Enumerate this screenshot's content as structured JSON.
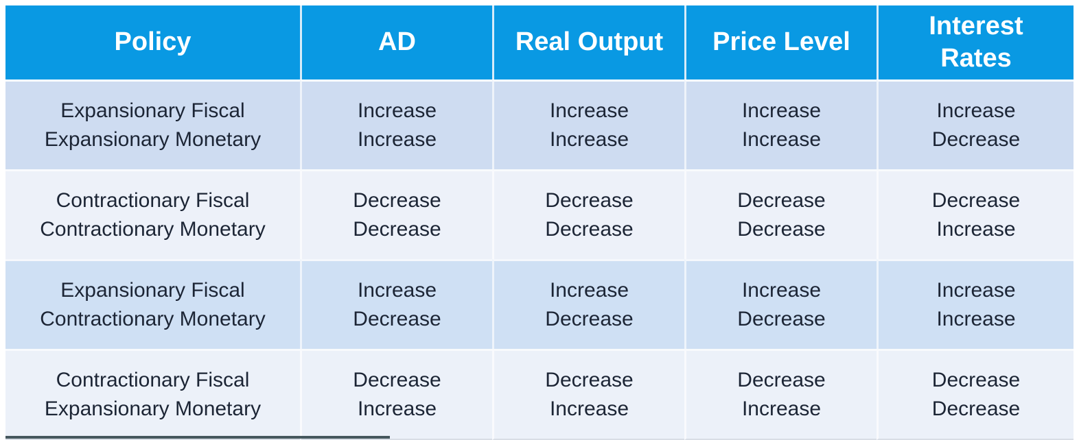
{
  "colors": {
    "header_bg": "#0999e3",
    "header_text": "#ffffff",
    "body_text": "#1c2535",
    "row_backgrounds": [
      "#cedcf1",
      "#edf1f9",
      "#cfe0f4",
      "#ecf1f9"
    ]
  },
  "table": {
    "columns": [
      "Policy",
      "AD",
      "Real Output",
      "Price Level",
      "Interest Rates"
    ],
    "rows": [
      {
        "cells": [
          [
            "Expansionary Fiscal",
            "Expansionary Monetary"
          ],
          [
            "Increase",
            "Increase"
          ],
          [
            "Increase",
            "Increase"
          ],
          [
            "Increase",
            "Increase"
          ],
          [
            "Increase",
            "Decrease"
          ]
        ]
      },
      {
        "cells": [
          [
            "Contractionary Fiscal",
            "Contractionary Monetary"
          ],
          [
            "Decrease",
            "Decrease"
          ],
          [
            "Decrease",
            "Decrease"
          ],
          [
            "Decrease",
            "Decrease"
          ],
          [
            "Decrease",
            "Increase"
          ]
        ]
      },
      {
        "cells": [
          [
            "Expansionary Fiscal",
            "Contractionary Monetary"
          ],
          [
            "Increase",
            "Decrease"
          ],
          [
            "Increase",
            "Decrease"
          ],
          [
            "Increase",
            "Decrease"
          ],
          [
            "Increase",
            "Increase"
          ]
        ]
      },
      {
        "cells": [
          [
            "Contractionary Fiscal",
            "Expansionary Monetary"
          ],
          [
            "Decrease",
            "Increase"
          ],
          [
            "Decrease",
            "Increase"
          ],
          [
            "Decrease",
            "Increase"
          ],
          [
            "Decrease",
            "Decrease"
          ]
        ]
      }
    ]
  },
  "chart_data": {
    "type": "table",
    "title": "",
    "columns": [
      "Policy",
      "AD",
      "Real Output",
      "Price Level",
      "Interest Rates"
    ],
    "rows": [
      [
        "Expansionary Fiscal / Expansionary Monetary",
        "Increase / Increase",
        "Increase / Increase",
        "Increase / Increase",
        "Increase / Decrease"
      ],
      [
        "Contractionary Fiscal / Contractionary Monetary",
        "Decrease / Decrease",
        "Decrease / Decrease",
        "Decrease / Decrease",
        "Decrease / Increase"
      ],
      [
        "Expansionary Fiscal / Contractionary Monetary",
        "Increase / Decrease",
        "Increase / Decrease",
        "Increase / Decrease",
        "Increase / Increase"
      ],
      [
        "Contractionary Fiscal / Expansionary Monetary",
        "Decrease / Increase",
        "Decrease / Increase",
        "Decrease / Increase",
        "Decrease / Decrease"
      ]
    ]
  }
}
